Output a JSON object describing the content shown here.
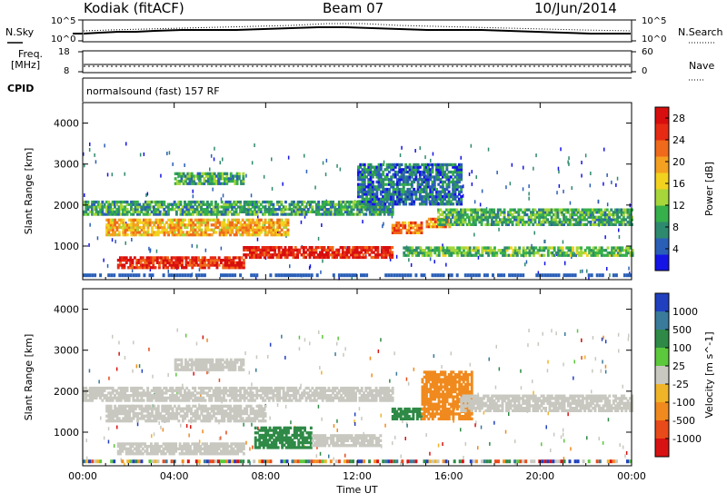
{
  "header": {
    "site": "Kodiak (fitACF)",
    "beam": "Beam 07",
    "date": "10/Jun/2014"
  },
  "strips": {
    "nsky": {
      "left_label": "N.Sky",
      "tick_top": "10^5",
      "tick_bottom": "10^0"
    },
    "nsearch": {
      "right_label": "N.Search",
      "tick_top": "10^5",
      "tick_bottom": "10^0"
    },
    "freq": {
      "label_line1": "Freq.",
      "label_line2": "[MHz]",
      "tick_top": "18",
      "tick_bottom": "8"
    },
    "nave": {
      "right_label": "Nave",
      "tick_top": "60",
      "tick_bottom": "0"
    },
    "cpid": {
      "label": "CPID",
      "text": "normalsound (fast) 157 RF"
    }
  },
  "chart_data": [
    {
      "type": "heatmap",
      "title": "",
      "xlabel": "",
      "ylabel": "Slant Range [km]",
      "xlim": [
        0,
        24
      ],
      "ylim": [
        180,
        4500
      ],
      "x_ticks": [
        "00:00",
        "04:00",
        "08:00",
        "12:00",
        "16:00",
        "20:00",
        "00:00"
      ],
      "y_ticks": [
        "1000",
        "2000",
        "3000",
        "4000"
      ],
      "colorbar": {
        "label": "Power [dB]",
        "ticks": [
          "4",
          "8",
          "12",
          "16",
          "20",
          "24",
          "28"
        ],
        "range": [
          0,
          30
        ],
        "colors": [
          "#1414e6",
          "#2a5fb8",
          "#2e8a6e",
          "#35b04a",
          "#a6d63a",
          "#f2d21e",
          "#f4a020",
          "#ef6a1a",
          "#e62a14",
          "#d80e0e"
        ]
      },
      "bands": [
        {
          "name": "",
          "t0": 0.0,
          "t1": 13.5,
          "r0": 1750,
          "r1": 2100,
          "value": 9
        },
        {
          "name": "",
          "t0": 1.0,
          "t1": 9.0,
          "r0": 1250,
          "r1": 1650,
          "value": 19
        },
        {
          "name": "",
          "t0": 1.5,
          "t1": 7.0,
          "r0": 450,
          "r1": 700,
          "value": 26
        },
        {
          "name": "",
          "t0": 7.0,
          "t1": 13.5,
          "r0": 700,
          "r1": 1000,
          "value": 27
        },
        {
          "name": "",
          "t0": 13.5,
          "t1": 14.8,
          "r0": 1300,
          "r1": 1600,
          "value": 22
        },
        {
          "name": "",
          "t0": 15.0,
          "t1": 16.0,
          "r0": 1450,
          "r1": 1650,
          "value": 21
        },
        {
          "name": "",
          "t0": 15.5,
          "t1": 24.0,
          "r0": 1500,
          "r1": 1900,
          "value": 10
        },
        {
          "name": "",
          "t0": 14.0,
          "t1": 24.0,
          "r0": 750,
          "r1": 950,
          "value": 11
        },
        {
          "name": "",
          "t0": 4.0,
          "t1": 7.0,
          "r0": 2500,
          "r1": 2800,
          "value": 10
        },
        {
          "name": "",
          "t0": 12.0,
          "t1": 16.5,
          "r0": 2000,
          "r1": 3000,
          "value": 6
        }
      ]
    },
    {
      "type": "heatmap",
      "title": "",
      "xlabel": "Time UT",
      "ylabel": "Slant Range [km]",
      "xlim": [
        0,
        24
      ],
      "ylim": [
        180,
        4500
      ],
      "x_ticks": [
        "00:00",
        "04:00",
        "08:00",
        "12:00",
        "16:00",
        "20:00",
        "00:00"
      ],
      "y_ticks": [
        "1000",
        "2000",
        "3000",
        "4000"
      ],
      "colorbar": {
        "label": "Velocity [m s^-1]",
        "ticks": [
          "1000",
          "500",
          "100",
          "25",
          "-25",
          "-100",
          "-500",
          "-1000"
        ],
        "colors": [
          "#2040c0",
          "#3a7a9a",
          "#2e8a46",
          "#5cc83c",
          "#c8c8c0",
          "#f0b428",
          "#f08a1e",
          "#e84a1a",
          "#d81212"
        ]
      },
      "bands": [
        {
          "name": "",
          "t0": 0.0,
          "t1": 13.5,
          "r0": 1750,
          "r1": 2100,
          "value": 0
        },
        {
          "name": "",
          "t0": 1.0,
          "t1": 8.0,
          "r0": 1250,
          "r1": 1650,
          "value": 0
        },
        {
          "name": "",
          "t0": 1.5,
          "t1": 7.0,
          "r0": 450,
          "r1": 700,
          "value": 0
        },
        {
          "name": "",
          "t0": 7.5,
          "t1": 10.0,
          "r0": 600,
          "r1": 1100,
          "value": 120
        },
        {
          "name": "",
          "t0": 10.0,
          "t1": 13.0,
          "r0": 650,
          "r1": 900,
          "value": 0
        },
        {
          "name": "",
          "t0": 13.5,
          "t1": 14.8,
          "r0": 1300,
          "r1": 1600,
          "value": 200
        },
        {
          "name": "",
          "t0": 14.8,
          "t1": 17.0,
          "r0": 1300,
          "r1": 2500,
          "value": -200
        },
        {
          "name": "",
          "t0": 16.5,
          "t1": 24.0,
          "r0": 1500,
          "r1": 1900,
          "value": 0
        },
        {
          "name": "",
          "t0": 4.0,
          "t1": 7.0,
          "r0": 2500,
          "r1": 2800,
          "value": 0
        }
      ]
    }
  ]
}
